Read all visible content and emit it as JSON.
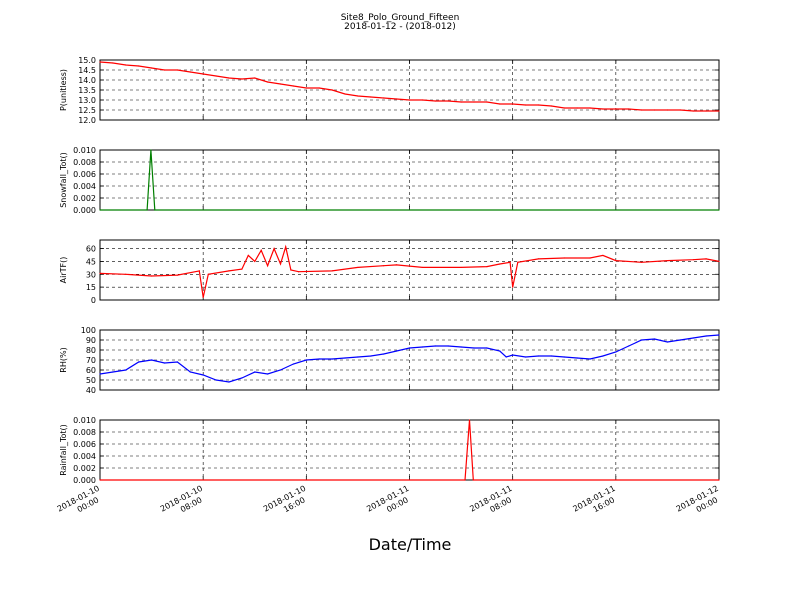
{
  "title": "Site8_Polo_Ground_Fifteen",
  "subtitle": "2018-01-12 - (2018-012)",
  "xlabel": "Date/Time",
  "x_ticks": [
    "2018-01-10\n00:00",
    "2018-01-10\n08:00",
    "2018-01-10\n16:00",
    "2018-01-11\n00:00",
    "2018-01-11\n08:00",
    "2018-01-11\n16:00",
    "2018-01-12\n00:00"
  ],
  "chart_data": [
    {
      "type": "line",
      "ylabel": "P(unitless)",
      "ylim": [
        12.0,
        15.0
      ],
      "yticks": [
        "12.0",
        "12.5",
        "13.0",
        "13.5",
        "14.0",
        "14.5",
        "15.0"
      ],
      "color": "#ff0000",
      "grid": true,
      "x_hours": [
        0,
        1,
        2,
        3,
        4,
        5,
        6,
        7,
        8,
        9,
        10,
        11,
        12,
        13,
        14,
        15,
        16,
        17,
        18,
        19,
        20,
        21,
        22,
        23,
        24,
        25,
        26,
        27,
        28,
        29,
        30,
        31,
        32,
        33,
        34,
        35,
        36,
        37,
        38,
        39,
        40,
        41,
        42,
        43,
        44,
        45,
        46,
        47,
        48
      ],
      "values": [
        14.9,
        14.85,
        14.75,
        14.7,
        14.6,
        14.5,
        14.5,
        14.4,
        14.3,
        14.2,
        14.1,
        14.05,
        14.1,
        13.9,
        13.8,
        13.7,
        13.6,
        13.6,
        13.5,
        13.3,
        13.2,
        13.15,
        13.1,
        13.05,
        13.0,
        13.0,
        12.95,
        12.95,
        12.9,
        12.9,
        12.9,
        12.8,
        12.8,
        12.75,
        12.75,
        12.7,
        12.6,
        12.6,
        12.6,
        12.55,
        12.55,
        12.55,
        12.5,
        12.5,
        12.5,
        12.5,
        12.45,
        12.45,
        12.45
      ]
    },
    {
      "type": "line",
      "ylabel": "Snowfall_Tot()",
      "ylim": [
        0.0,
        0.01
      ],
      "yticks": [
        "0.000",
        "0.002",
        "0.004",
        "0.006",
        "0.008",
        "0.010"
      ],
      "color": "#007f00",
      "grid": true,
      "x_hours": [
        0,
        3.65,
        3.95,
        4.25,
        48
      ],
      "values": [
        0,
        0,
        0.01,
        0,
        0
      ]
    },
    {
      "type": "line",
      "ylabel": "AirTF()",
      "ylim": [
        0,
        70
      ],
      "yticks": [
        "0",
        "15",
        "30",
        "45",
        "60"
      ],
      "color": "#ff0000",
      "grid": true,
      "x_hours": [
        0,
        2,
        4,
        6,
        7.7,
        8.0,
        8.4,
        10,
        11,
        11.5,
        12,
        12.5,
        13,
        13.5,
        14,
        14.4,
        14.8,
        15.4,
        18,
        20,
        22,
        23,
        25,
        28,
        30,
        31,
        31.8,
        32,
        32.4,
        34,
        36,
        38,
        39,
        40,
        42,
        44,
        46,
        47,
        48
      ],
      "values": [
        31,
        30,
        28,
        29,
        34,
        3,
        30,
        34,
        36,
        52,
        45,
        58,
        40,
        60,
        42,
        62,
        35,
        33,
        34,
        38,
        40,
        41,
        38,
        38,
        39,
        42,
        44,
        15,
        44,
        48,
        49,
        49,
        52,
        46,
        44,
        46,
        47,
        48,
        45
      ]
    },
    {
      "type": "line",
      "ylabel": "RH(%)",
      "ylim": [
        40,
        100
      ],
      "yticks": [
        "40",
        "50",
        "60",
        "70",
        "80",
        "90",
        "100"
      ],
      "color": "#0000ff",
      "grid": true,
      "x_hours": [
        0,
        1,
        2,
        3,
        4,
        5,
        6,
        7,
        8,
        9,
        10,
        11,
        12,
        13,
        14,
        15,
        16,
        17,
        18,
        19,
        20,
        21,
        22,
        23,
        24,
        25,
        26,
        27,
        28,
        29,
        30,
        31,
        31.5,
        32,
        33,
        34,
        35,
        36,
        37,
        38,
        39,
        40,
        41,
        42,
        43,
        44,
        45,
        46,
        47,
        48
      ],
      "values": [
        56,
        58,
        60,
        68,
        70,
        67,
        68,
        58,
        55,
        50,
        48,
        52,
        58,
        56,
        60,
        66,
        70,
        71,
        71,
        72,
        73,
        74,
        76,
        79,
        82,
        83,
        84,
        84,
        83,
        82,
        82,
        79,
        73,
        75,
        73,
        74,
        74,
        73,
        72,
        71,
        74,
        78,
        84,
        90,
        91,
        88,
        90,
        92,
        94,
        95
      ]
    },
    {
      "type": "line",
      "ylabel": "Rainfall_Tot()",
      "ylim": [
        0.0,
        0.01
      ],
      "yticks": [
        "0.000",
        "0.002",
        "0.004",
        "0.006",
        "0.008",
        "0.010"
      ],
      "color": "#ff0000",
      "grid": true,
      "x_hours": [
        0,
        28.3,
        28.65,
        28.95,
        48
      ],
      "values": [
        0,
        0,
        0.01,
        0,
        0
      ]
    }
  ]
}
